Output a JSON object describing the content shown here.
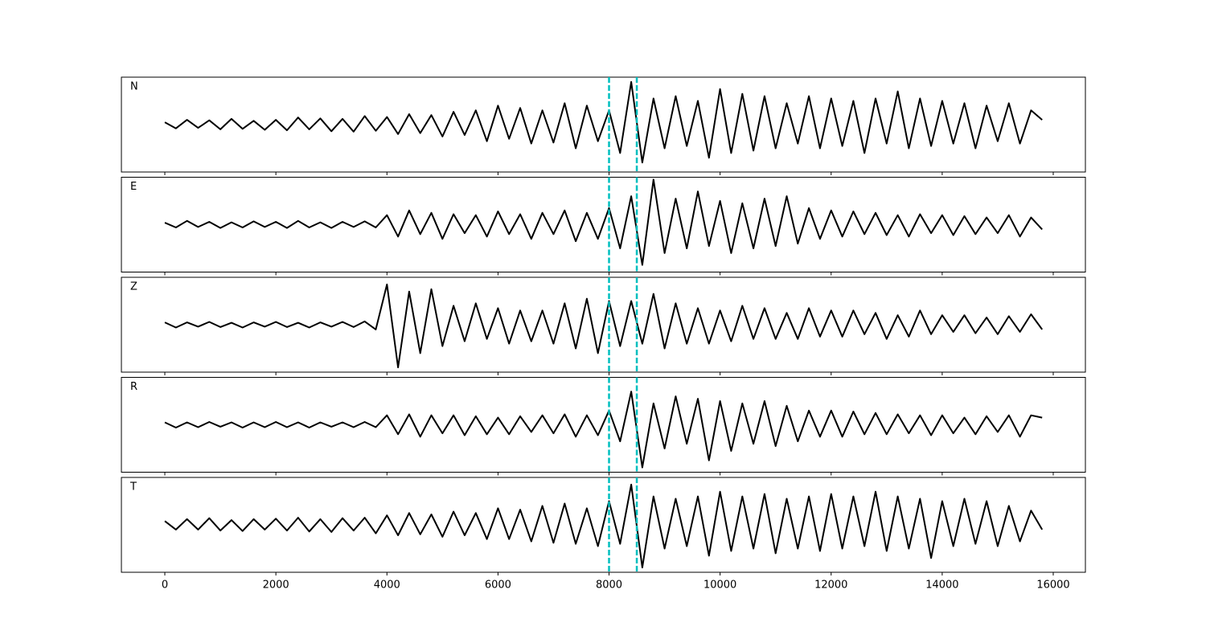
{
  "chart_data": {
    "type": "line",
    "layout": "stacked",
    "x": [
      0,
      200,
      400,
      600,
      800,
      1000,
      1200,
      1400,
      1600,
      1800,
      2000,
      2200,
      2400,
      2600,
      2800,
      3000,
      3200,
      3400,
      3600,
      3800,
      4000,
      4200,
      4400,
      4600,
      4800,
      5000,
      5200,
      5400,
      5600,
      5800,
      6000,
      6200,
      6400,
      6600,
      6800,
      7000,
      7200,
      7400,
      7600,
      7800,
      8000,
      8200,
      8400,
      8600,
      8800,
      9000,
      9200,
      9400,
      9600,
      9800,
      10000,
      10200,
      10400,
      10600,
      10800,
      11000,
      11200,
      11400,
      11600,
      11800,
      12000,
      12200,
      12400,
      12600,
      12800,
      13000,
      13200,
      13400,
      13600,
      13800,
      14000,
      14200,
      14400,
      14600,
      14800,
      15000,
      15200,
      15400,
      15600,
      15800
    ],
    "xlim": [
      -782,
      16579
    ],
    "xticks": [
      0,
      2000,
      4000,
      6000,
      8000,
      10000,
      12000,
      14000,
      16000
    ],
    "ylim": [
      -1,
      1
    ],
    "series": [
      {
        "name": "N",
        "color": "#000000",
        "values": [
          0.05,
          -0.08,
          0.1,
          -0.07,
          0.09,
          -0.1,
          0.12,
          -0.09,
          0.08,
          -0.11,
          0.1,
          -0.12,
          0.15,
          -0.1,
          0.13,
          -0.14,
          0.12,
          -0.15,
          0.18,
          -0.13,
          0.16,
          -0.2,
          0.22,
          -0.18,
          0.2,
          -0.25,
          0.27,
          -0.22,
          0.3,
          -0.35,
          0.4,
          -0.3,
          0.35,
          -0.4,
          0.3,
          -0.38,
          0.45,
          -0.5,
          0.4,
          -0.35,
          0.3,
          -0.6,
          0.9,
          -0.8,
          0.55,
          -0.5,
          0.6,
          -0.45,
          0.5,
          -0.7,
          0.75,
          -0.6,
          0.65,
          -0.55,
          0.6,
          -0.5,
          0.45,
          -0.4,
          0.6,
          -0.5,
          0.55,
          -0.45,
          0.5,
          -0.6,
          0.55,
          -0.4,
          0.7,
          -0.5,
          0.55,
          -0.45,
          0.5,
          -0.4,
          0.45,
          -0.5,
          0.4,
          -0.35,
          0.45,
          -0.4,
          0.3,
          0.1
        ]
      },
      {
        "name": "E",
        "color": "#000000",
        "values": [
          0.04,
          -0.06,
          0.08,
          -0.05,
          0.06,
          -0.07,
          0.05,
          -0.06,
          0.07,
          -0.05,
          0.06,
          -0.07,
          0.08,
          -0.06,
          0.05,
          -0.07,
          0.06,
          -0.05,
          0.07,
          -0.06,
          0.2,
          -0.25,
          0.3,
          -0.2,
          0.25,
          -0.3,
          0.22,
          -0.18,
          0.2,
          -0.25,
          0.28,
          -0.2,
          0.22,
          -0.3,
          0.25,
          -0.2,
          0.3,
          -0.35,
          0.25,
          -0.3,
          0.35,
          -0.5,
          0.6,
          -0.85,
          0.95,
          -0.6,
          0.55,
          -0.5,
          0.7,
          -0.45,
          0.5,
          -0.6,
          0.45,
          -0.5,
          0.55,
          -0.45,
          0.6,
          -0.4,
          0.35,
          -0.3,
          0.3,
          -0.25,
          0.28,
          -0.2,
          0.25,
          -0.22,
          0.2,
          -0.25,
          0.22,
          -0.18,
          0.2,
          -0.22,
          0.18,
          -0.2,
          0.15,
          -0.18,
          0.2,
          -0.25,
          0.15,
          -0.1
        ]
      },
      {
        "name": "Z",
        "color": "#000000",
        "values": [
          0.05,
          -0.06,
          0.05,
          -0.04,
          0.06,
          -0.05,
          0.04,
          -0.06,
          0.05,
          -0.04,
          0.06,
          -0.05,
          0.04,
          -0.06,
          0.05,
          -0.04,
          0.06,
          -0.05,
          0.07,
          -0.1,
          0.85,
          -0.9,
          0.7,
          -0.6,
          0.75,
          -0.45,
          0.4,
          -0.35,
          0.45,
          -0.3,
          0.35,
          -0.4,
          0.3,
          -0.35,
          0.3,
          -0.4,
          0.45,
          -0.5,
          0.55,
          -0.6,
          0.5,
          -0.45,
          0.5,
          -0.4,
          0.65,
          -0.5,
          0.45,
          -0.4,
          0.35,
          -0.4,
          0.3,
          -0.35,
          0.4,
          -0.3,
          0.35,
          -0.3,
          0.25,
          -0.3,
          0.35,
          -0.25,
          0.3,
          -0.25,
          0.3,
          -0.2,
          0.25,
          -0.3,
          0.2,
          -0.25,
          0.3,
          -0.2,
          0.2,
          -0.15,
          0.2,
          -0.18,
          0.15,
          -0.2,
          0.18,
          -0.15,
          0.22,
          -0.1
        ]
      },
      {
        "name": "R",
        "color": "#000000",
        "values": [
          0.05,
          -0.06,
          0.05,
          -0.05,
          0.06,
          -0.04,
          0.05,
          -0.06,
          0.05,
          -0.05,
          0.06,
          -0.05,
          0.05,
          -0.06,
          0.05,
          -0.04,
          0.05,
          -0.05,
          0.06,
          -0.05,
          0.2,
          -0.2,
          0.22,
          -0.25,
          0.2,
          -0.18,
          0.2,
          -0.22,
          0.18,
          -0.2,
          0.15,
          -0.2,
          0.18,
          -0.15,
          0.2,
          -0.18,
          0.22,
          -0.25,
          0.2,
          -0.22,
          0.3,
          -0.35,
          0.7,
          -0.9,
          0.45,
          -0.5,
          0.6,
          -0.4,
          0.55,
          -0.75,
          0.5,
          -0.55,
          0.45,
          -0.4,
          0.5,
          -0.45,
          0.4,
          -0.35,
          0.3,
          -0.25,
          0.3,
          -0.25,
          0.28,
          -0.2,
          0.25,
          -0.2,
          0.22,
          -0.18,
          0.2,
          -0.22,
          0.2,
          -0.18,
          0.15,
          -0.2,
          0.18,
          -0.15,
          0.2,
          -0.25,
          0.2,
          0.15
        ]
      },
      {
        "name": "T",
        "color": "#000000",
        "values": [
          0.08,
          -0.1,
          0.12,
          -0.1,
          0.14,
          -0.12,
          0.1,
          -0.13,
          0.12,
          -0.1,
          0.13,
          -0.12,
          0.15,
          -0.14,
          0.12,
          -0.15,
          0.14,
          -0.12,
          0.15,
          -0.18,
          0.2,
          -0.22,
          0.25,
          -0.2,
          0.22,
          -0.25,
          0.28,
          -0.22,
          0.25,
          -0.3,
          0.35,
          -0.3,
          0.32,
          -0.35,
          0.4,
          -0.38,
          0.45,
          -0.4,
          0.35,
          -0.45,
          0.5,
          -0.4,
          0.85,
          -0.9,
          0.6,
          -0.5,
          0.55,
          -0.45,
          0.6,
          -0.65,
          0.7,
          -0.55,
          0.6,
          -0.5,
          0.65,
          -0.6,
          0.55,
          -0.5,
          0.6,
          -0.55,
          0.65,
          -0.5,
          0.6,
          -0.45,
          0.7,
          -0.55,
          0.6,
          -0.5,
          0.55,
          -0.7,
          0.5,
          -0.45,
          0.55,
          -0.4,
          0.5,
          -0.45,
          0.4,
          -0.35,
          0.3,
          -0.1
        ]
      }
    ],
    "vlines": {
      "values": [
        8000,
        8500
      ],
      "color": "#00bfbf"
    }
  }
}
